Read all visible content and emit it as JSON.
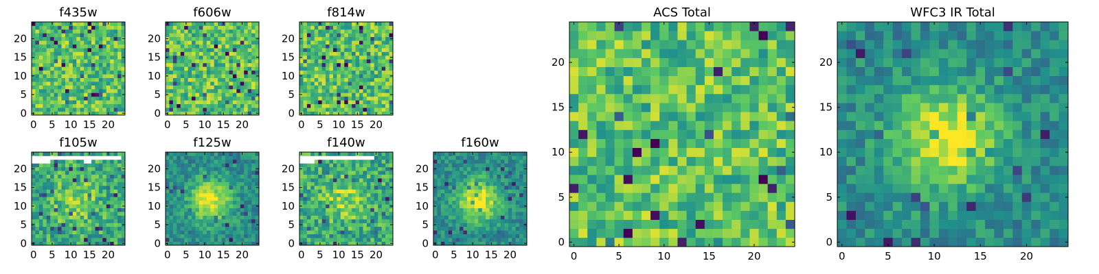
{
  "chart_data": [
    {
      "type": "heatmap",
      "title": "f435w",
      "grid_size": 24,
      "x_ticks": [
        "0",
        "5",
        "10",
        "15",
        "20"
      ],
      "y_ticks": [
        "0",
        "5",
        "10",
        "15",
        "20"
      ],
      "pattern": "noise",
      "colormap": "viridis"
    },
    {
      "type": "heatmap",
      "title": "f606w",
      "grid_size": 24,
      "x_ticks": [
        "0",
        "5",
        "10",
        "15",
        "20"
      ],
      "y_ticks": [
        "0",
        "5",
        "10",
        "15",
        "20"
      ],
      "pattern": "noise",
      "colormap": "viridis"
    },
    {
      "type": "heatmap",
      "title": "f814w",
      "grid_size": 24,
      "x_ticks": [
        "0",
        "5",
        "10",
        "15",
        "20"
      ],
      "y_ticks": [
        "0",
        "5",
        "10",
        "15",
        "20"
      ],
      "pattern": "noise",
      "colormap": "viridis"
    },
    {
      "type": "heatmap",
      "title": "f105w",
      "grid_size": 24,
      "x_ticks": [
        "0",
        "5",
        "10",
        "15",
        "20"
      ],
      "y_ticks": [
        "0",
        "5",
        "10",
        "15",
        "20"
      ],
      "pattern": "noise with faint central source; blank pixels in top rows",
      "colormap": "viridis"
    },
    {
      "type": "heatmap",
      "title": "f125w",
      "grid_size": 24,
      "x_ticks": [
        "0",
        "5",
        "10",
        "15",
        "20"
      ],
      "y_ticks": [
        "0",
        "5",
        "10",
        "15",
        "20"
      ],
      "pattern": "central source",
      "colormap": "viridis"
    },
    {
      "type": "heatmap",
      "title": "f140w",
      "grid_size": 24,
      "x_ticks": [
        "0",
        "5",
        "10",
        "15",
        "20"
      ],
      "y_ticks": [
        "0",
        "5",
        "10",
        "15",
        "20"
      ],
      "pattern": "noise with central source; blank pixels in top rows",
      "colormap": "viridis"
    },
    {
      "type": "heatmap",
      "title": "f160w",
      "grid_size": 24,
      "x_ticks": [
        "0",
        "5",
        "10",
        "15",
        "20"
      ],
      "y_ticks": [
        "0",
        "5",
        "10",
        "15",
        "20"
      ],
      "pattern": "central source",
      "colormap": "viridis"
    },
    {
      "type": "heatmap",
      "title": "ACS Total",
      "grid_size": 24,
      "x_ticks": [
        "0",
        "5",
        "10",
        "15",
        "20"
      ],
      "y_ticks": [
        "0",
        "5",
        "10",
        "15",
        "20"
      ],
      "pattern": "noise",
      "colormap": "viridis"
    },
    {
      "type": "heatmap",
      "title": "WFC3 IR Total",
      "grid_size": 24,
      "x_ticks": [
        "0",
        "5",
        "10",
        "15",
        "20"
      ],
      "y_ticks": [
        "0",
        "5",
        "10",
        "15",
        "20"
      ],
      "pattern": "central source",
      "colormap": "viridis"
    }
  ]
}
